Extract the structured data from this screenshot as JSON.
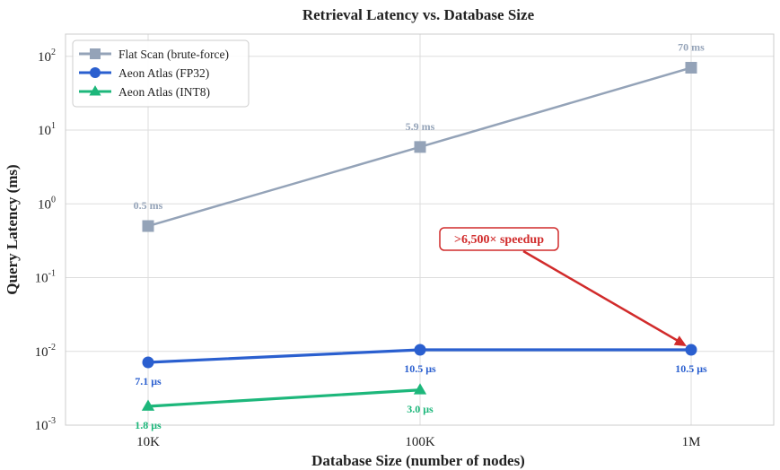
{
  "chart_data": {
    "type": "line",
    "title": "Retrieval Latency vs. Database Size",
    "xlabel": "Database Size (number of nodes)",
    "ylabel": "Query Latency (ms)",
    "categories": [
      "10K",
      "100K",
      "1M"
    ],
    "yscale": "log",
    "ylim": [
      0.001,
      200
    ],
    "ytick_values": [
      0.001,
      0.01,
      0.1,
      1,
      10,
      100
    ],
    "ytick_exponents": [
      "-3",
      "-2",
      "-1",
      "0",
      "1",
      "2"
    ],
    "grid": true,
    "legend_position": "top-left",
    "series": [
      {
        "name": "Flat Scan (brute-force)",
        "color": "#94a3b8",
        "marker": "square",
        "values": [
          0.5,
          5.9,
          70
        ],
        "labels": [
          "0.5 ms",
          "5.9 ms",
          "70 ms"
        ]
      },
      {
        "name": "Aeon Atlas (FP32)",
        "color": "#2a5fcf",
        "marker": "circle",
        "values": [
          0.0071,
          0.0105,
          0.0105
        ],
        "labels": [
          "7.1 μs",
          "10.5 μs",
          "10.5 μs"
        ]
      },
      {
        "name": "Aeon Atlas (INT8)",
        "color": "#1db77b",
        "marker": "triangle",
        "values": [
          0.0018,
          0.003,
          null
        ],
        "labels": [
          "1.8 μs",
          "3.0 μs",
          null
        ]
      }
    ],
    "annotation": {
      "text": ">6,500× speedup",
      "color": "#d12b2b",
      "target_category": "1M",
      "target_value": 0.0105
    }
  }
}
